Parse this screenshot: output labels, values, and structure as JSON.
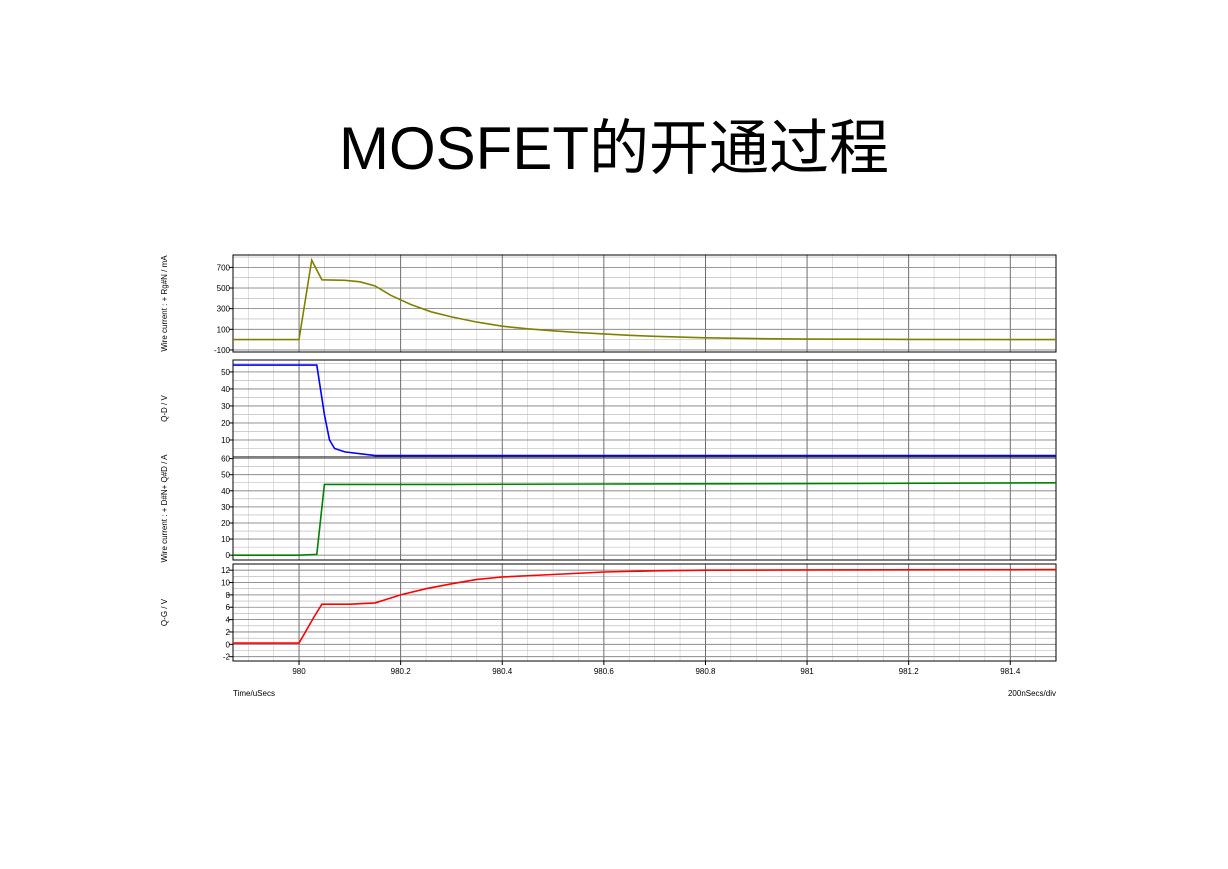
{
  "slide_title": "MOSFET的开通过程",
  "x_axis": {
    "label": "Time/uSecs",
    "scale_note": "200nSecs/div",
    "range": [
      979.87,
      981.49
    ],
    "ticks": [
      980,
      980.2,
      980.4,
      980.6,
      980.8,
      981,
      981.2,
      981.4
    ],
    "tick_labels": [
      "980",
      "980.2",
      "980.4",
      "980.6",
      "980.8",
      "981",
      "981.2",
      "981.4"
    ]
  },
  "chart_data": [
    {
      "type": "line",
      "ylabel": "Wire current : + Rg#N / mA",
      "ylim": [
        -120,
        820
      ],
      "yticks": [
        -100,
        100,
        300,
        500,
        700
      ],
      "ytick_labels": [
        "-100",
        "100",
        "300",
        "500",
        "700"
      ],
      "grid": true,
      "series": [
        {
          "color": "#808000",
          "x": [
            979.87,
            980.0,
            980.025,
            980.045,
            980.09,
            980.12,
            980.15,
            980.18,
            980.22,
            980.26,
            980.3,
            980.35,
            980.4,
            980.45,
            980.5,
            980.55,
            980.6,
            980.65,
            980.7,
            980.75,
            980.8,
            980.9,
            981.0,
            981.2,
            981.49
          ],
          "y": [
            0,
            0,
            770,
            580,
            575,
            560,
            520,
            430,
            340,
            270,
            220,
            170,
            130,
            105,
            85,
            68,
            55,
            42,
            32,
            24,
            18,
            10,
            5,
            2,
            0
          ]
        }
      ]
    },
    {
      "type": "line",
      "ylabel": "Q-D / V",
      "ylim": [
        0,
        57
      ],
      "yticks": [
        10,
        20,
        30,
        40,
        50
      ],
      "ytick_labels": [
        "10",
        "20",
        "30",
        "40",
        "50"
      ],
      "grid": true,
      "series": [
        {
          "color": "#0000ff",
          "x": [
            979.87,
            980.0,
            980.035,
            980.05,
            980.06,
            980.07,
            980.09,
            980.15,
            981.49
          ],
          "y": [
            54,
            54,
            54,
            25,
            10,
            5,
            3,
            0.8,
            0.8
          ]
        }
      ]
    },
    {
      "type": "line",
      "ylabel": "Wire current : + D#N+ Q#D / A",
      "ylim": [
        -3,
        61
      ],
      "yticks": [
        0,
        10,
        20,
        30,
        40,
        50,
        60
      ],
      "ytick_labels": [
        "0",
        "10",
        "20",
        "30",
        "40",
        "50",
        "60"
      ],
      "grid": true,
      "series": [
        {
          "color": "#008000",
          "x": [
            979.87,
            980.0,
            980.035,
            980.05,
            980.3,
            980.6,
            981.0,
            981.49
          ],
          "y": [
            0,
            0,
            0.5,
            44,
            44,
            44.2,
            44.5,
            45
          ]
        }
      ]
    },
    {
      "type": "line",
      "ylabel": "Q-G / V",
      "ylim": [
        -2.7,
        13
      ],
      "yticks": [
        -2,
        0,
        2,
        4,
        6,
        8,
        10,
        12
      ],
      "ytick_labels": [
        "-2",
        "0",
        "2",
        "4",
        "6",
        "8",
        "10",
        "12"
      ],
      "grid": true,
      "series": [
        {
          "color": "#ff0000",
          "x": [
            979.87,
            980.0,
            980.03,
            980.045,
            980.1,
            980.15,
            980.2,
            980.25,
            980.3,
            980.35,
            980.4,
            980.5,
            980.6,
            980.7,
            980.8,
            981.0,
            981.49
          ],
          "y": [
            0.2,
            0.2,
            4.5,
            6.5,
            6.5,
            6.7,
            8.0,
            9.0,
            9.8,
            10.5,
            10.9,
            11.3,
            11.7,
            11.9,
            12.0,
            12.05,
            12.1
          ]
        }
      ]
    }
  ]
}
